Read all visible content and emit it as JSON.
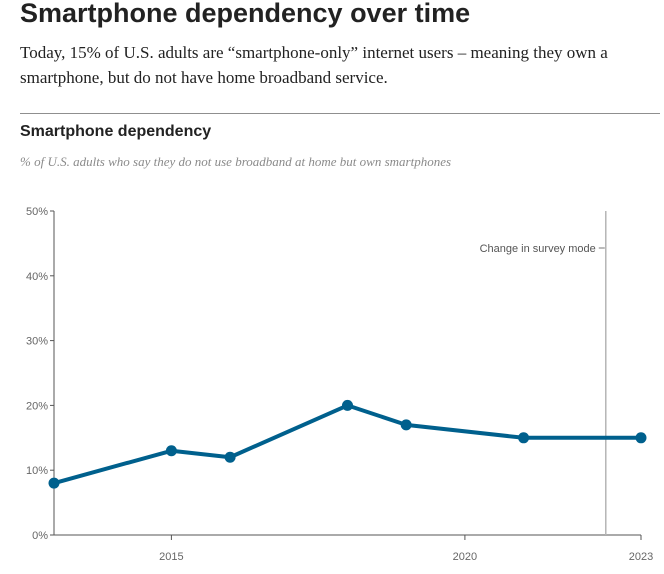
{
  "header": {
    "headline": "Smartphone dependency over time",
    "intro": "Today, 15% of U.S. adults are “smartphone-only” internet users – meaning they own a smartphone, but do not have home broadband service."
  },
  "chart_data": {
    "type": "line",
    "title": "Smartphone dependency",
    "subtitle": "% of U.S. adults who say they do not use broadband at home but own smartphones",
    "xlabel": "",
    "ylabel": "",
    "x_ticks": [
      "2015",
      "2020",
      "2023"
    ],
    "y_ticks": [
      "0%",
      "10%",
      "20%",
      "30%",
      "40%",
      "50%"
    ],
    "ylim": [
      0,
      50
    ],
    "xlim": [
      2013,
      2023
    ],
    "grid": false,
    "series": [
      {
        "x": [
          2013,
          2015,
          2016,
          2018,
          2019,
          2021,
          2023
        ],
        "values": [
          8,
          13,
          12,
          20,
          17,
          15,
          15
        ]
      }
    ],
    "annotations": [
      {
        "text": "Change in survey mode",
        "x": 2022.4
      }
    ],
    "colors": {
      "line": "#00608d",
      "annotation_line": "#b5b5b5",
      "axis": "#555555"
    }
  }
}
